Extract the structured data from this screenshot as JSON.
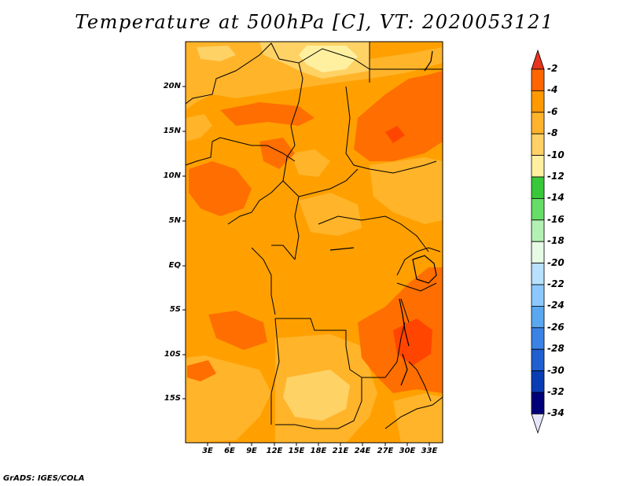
{
  "title": "Temperature at 500hPa [C], VT: 2020053121",
  "credit": "GrADS: IGES/COLA",
  "lat_labels": [
    "20N",
    "15N",
    "10N",
    "5N",
    "EQ",
    "5S",
    "10S",
    "15S"
  ],
  "lon_labels": [
    "3E",
    "6E",
    "9E",
    "12E",
    "15E",
    "18E",
    "21E",
    "24E",
    "27E",
    "30E",
    "33E"
  ],
  "colorbar": {
    "labels": [
      "-2",
      "-4",
      "-6",
      "-8",
      "-10",
      "-12",
      "-14",
      "-16",
      "-18",
      "-20",
      "-22",
      "-24",
      "-26",
      "-28",
      "-30",
      "-32",
      "-34"
    ],
    "colors": [
      "#ff4500",
      "#ff6600",
      "#ff9900",
      "#ffb32c",
      "#ffd166",
      "#fff0a0",
      "#39c839",
      "#66dd66",
      "#b3f0b3",
      "#e6fae6",
      "#b8e0ff",
      "#8cc8ff",
      "#5aa8f0",
      "#3b82e6",
      "#1f5fd2",
      "#0a3cb4",
      "#000078"
    ],
    "top_arrow_color": "#e8331e",
    "bottom_arrow_color": "#e6e6fa"
  },
  "field_colors": {
    "base": "#ffa000",
    "warm": "#ff6e00",
    "warmer": "#ff4500",
    "cool": "#ffb42a",
    "cooler": "#ffd266",
    "coolest": "#fff0a0"
  },
  "boundary_color": "#000000"
}
